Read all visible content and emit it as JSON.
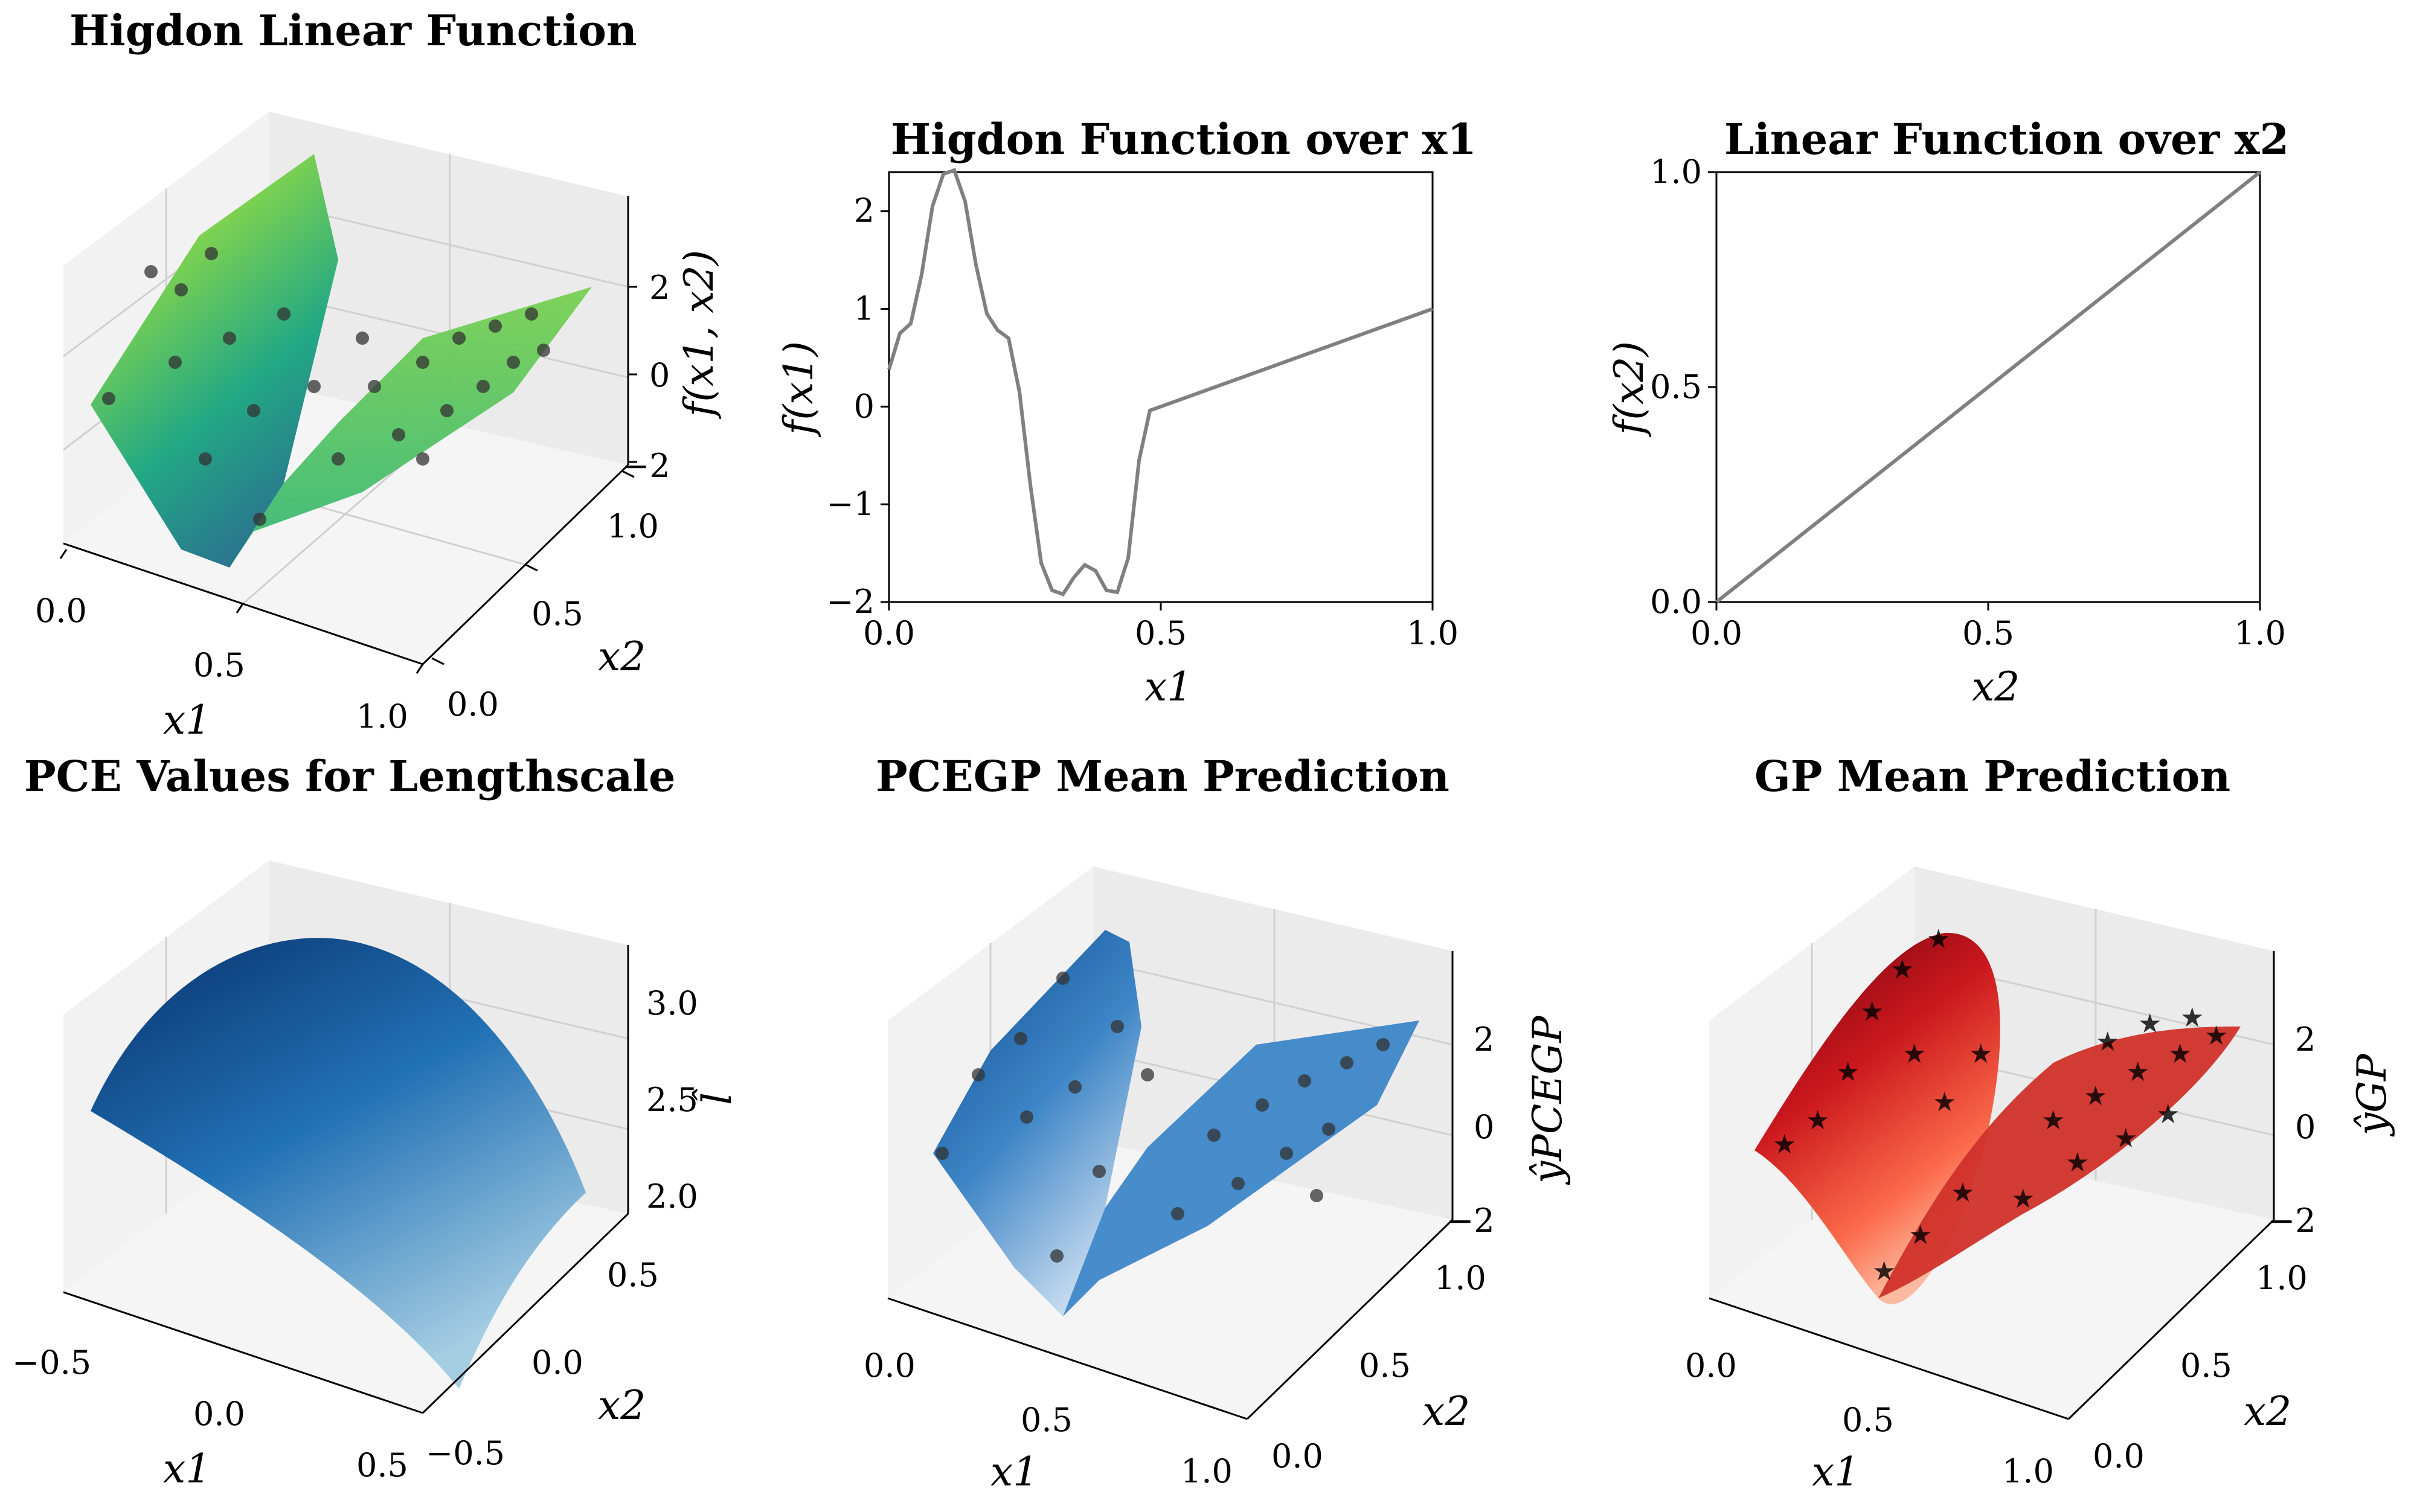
{
  "chart_data": [
    {
      "type": "surface3d",
      "title": "Higdon Linear Function",
      "xlabel": "x1",
      "ylabel": "x2",
      "zlabel": "f(x1, x2)",
      "xticks": [
        "0.0",
        "0.5",
        "1.0"
      ],
      "yticks": [
        "0.0",
        "0.5",
        "1.0"
      ],
      "zticks": [
        "−2",
        "0",
        "2"
      ],
      "xlim": [
        0,
        1
      ],
      "ylim": [
        0,
        1
      ],
      "zlim": [
        -2,
        2.4
      ],
      "colormap": "viridis",
      "surface_color": "#55c667",
      "points_marker": "circle",
      "points_color": "#333333"
    },
    {
      "type": "line",
      "title": "Higdon Function over x1",
      "xlabel": "x1",
      "ylabel": "f(x1)",
      "xlim": [
        0,
        1
      ],
      "ylim": [
        -2,
        2.4
      ],
      "xticks": [
        "0.0",
        "0.5",
        "1.0"
      ],
      "yticks": [
        "−2",
        "−1",
        "0",
        "1",
        "2"
      ],
      "series": [
        {
          "color": "#808080",
          "x": [
            0,
            0.02,
            0.04,
            0.06,
            0.08,
            0.1,
            0.12,
            0.14,
            0.16,
            0.18,
            0.2,
            0.22,
            0.24,
            0.26,
            0.28,
            0.3,
            0.32,
            0.34,
            0.36,
            0.38,
            0.4,
            0.42,
            0.44,
            0.46,
            0.48,
            1.0
          ],
          "y": [
            0.38,
            0.75,
            0.85,
            1.35,
            2.05,
            2.38,
            2.42,
            2.1,
            1.45,
            0.95,
            0.78,
            0.7,
            0.15,
            -0.8,
            -1.6,
            -1.88,
            -1.92,
            -1.75,
            -1.62,
            -1.68,
            -1.88,
            -1.9,
            -1.55,
            -0.55,
            -0.04,
            1.0
          ]
        }
      ]
    },
    {
      "type": "line",
      "title": "Linear Function over x2",
      "xlabel": "x2",
      "ylabel": "f(x2)",
      "xlim": [
        0,
        1
      ],
      "ylim": [
        0,
        1
      ],
      "xticks": [
        "0.0",
        "0.5",
        "1.0"
      ],
      "yticks": [
        "0.0",
        "0.5",
        "1.0"
      ],
      "series": [
        {
          "color": "#808080",
          "x": [
            0,
            1
          ],
          "y": [
            0,
            1
          ]
        }
      ]
    },
    {
      "type": "surface3d",
      "title": "PCE Values for Lengthscale",
      "xlabel": "x1",
      "ylabel": "x2",
      "zlabel": "l̂",
      "xticks": [
        "−0.5",
        "0.0",
        "0.5"
      ],
      "yticks": [
        "−0.5",
        "0.0",
        "0.5"
      ],
      "zticks": [
        "2.0",
        "2.5",
        "3.0"
      ],
      "xlim": [
        -0.5,
        0.5
      ],
      "ylim": [
        -0.5,
        0.5
      ],
      "zlim": [
        1.9,
        3.2
      ],
      "colormap": "Blues",
      "surface_color": "#2e78b7",
      "points_marker": "none"
    },
    {
      "type": "surface3d",
      "title": "PCEGP Mean Prediction",
      "xlabel": "x1",
      "ylabel": "x2",
      "zlabel": "ŷPCEGP",
      "xticks": [
        "0.0",
        "0.5",
        "1.0"
      ],
      "yticks": [
        "0.0",
        "0.5",
        "1.0"
      ],
      "zticks": [
        "−2",
        "0",
        "2"
      ],
      "xlim": [
        0,
        1
      ],
      "ylim": [
        0,
        1
      ],
      "zlim": [
        -2,
        2.4
      ],
      "colormap": "Blues",
      "surface_color": "#3a86c4",
      "points_marker": "circle",
      "points_color": "#333333"
    },
    {
      "type": "surface3d",
      "title": "GP Mean Prediction",
      "xlabel": "x1",
      "ylabel": "x2",
      "zlabel": "ŷGP",
      "xticks": [
        "0.0",
        "0.5",
        "1.0"
      ],
      "yticks": [
        "0.0",
        "0.5",
        "1.0"
      ],
      "zticks": [
        "−2",
        "0",
        "2"
      ],
      "xlim": [
        0,
        1
      ],
      "ylim": [
        0,
        1
      ],
      "zlim": [
        -2,
        2.4
      ],
      "colormap": "Reds",
      "surface_color": "#d73027",
      "points_marker": "star",
      "points_color": "#222222"
    }
  ]
}
